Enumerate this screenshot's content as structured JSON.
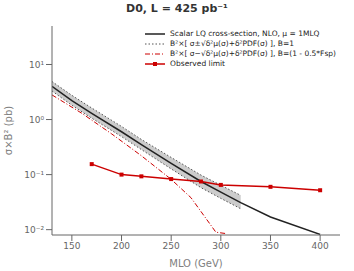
{
  "chart_data": {
    "type": "line",
    "title": "D0, L = 425 pb⁻¹",
    "xlabel": "MLO (GeV)",
    "ylabel": "σ×B² (pb)",
    "log": "y",
    "grid": false,
    "legend": "upper right",
    "xlim": [
      130,
      420
    ],
    "xticks": [
      150,
      200,
      250,
      300,
      350,
      400
    ],
    "ylim": [
      0.008,
      50
    ],
    "yticks": [
      {
        "value": 0.01,
        "label": "10⁻²"
      },
      {
        "value": 0.1,
        "label": "10⁻¹"
      },
      {
        "value": 1,
        "label": "10⁰"
      },
      {
        "value": 10,
        "label": "10¹"
      }
    ],
    "series": [
      {
        "name": "Scalar LQ cross-section, NLO, μ = 1MLQ",
        "type": "line",
        "color": "#222222",
        "line_style": "solid",
        "x": [
          130,
          150,
          170,
          200,
          220,
          250,
          280,
          300,
          320,
          350,
          400
        ],
        "values": [
          4.0,
          2.2,
          1.3,
          0.6,
          0.35,
          0.16,
          0.075,
          0.048,
          0.031,
          0.017,
          0.0082
        ]
      },
      {
        "name": "B²×[ σ±√δ²μ(σ)+δ²PDF(σ) ], B=1",
        "type": "band",
        "color": "#555555",
        "line_style": "dotted",
        "x": [
          130,
          150,
          170,
          200,
          220,
          250,
          280,
          300,
          320
        ],
        "lower": [
          3.3,
          1.82,
          1.06,
          0.49,
          0.285,
          0.127,
          0.058,
          0.037,
          0.024
        ],
        "upper": [
          4.9,
          2.75,
          1.62,
          0.75,
          0.435,
          0.205,
          0.098,
          0.064,
          0.042
        ]
      },
      {
        "name": "B²×[ σ−√δ²μ(σ)+δ²PDF(σ) ], B=(1 - 0.5*Fsp)",
        "type": "line",
        "color": "#cc0000",
        "line_style": "dashdot",
        "x": [
          130,
          160,
          190,
          220,
          250,
          270,
          285,
          295,
          305
        ],
        "values": [
          2.8,
          1.3,
          0.55,
          0.22,
          0.082,
          0.038,
          0.016,
          0.009,
          0.0085
        ]
      },
      {
        "name": "Observed limit",
        "type": "line",
        "color": "#cc0000",
        "line_style": "solid",
        "marker": "square",
        "x": [
          170,
          200,
          220,
          250,
          280,
          300,
          350,
          400
        ],
        "values": [
          0.155,
          0.1,
          0.093,
          0.083,
          0.075,
          0.065,
          0.06,
          0.052
        ]
      }
    ]
  }
}
